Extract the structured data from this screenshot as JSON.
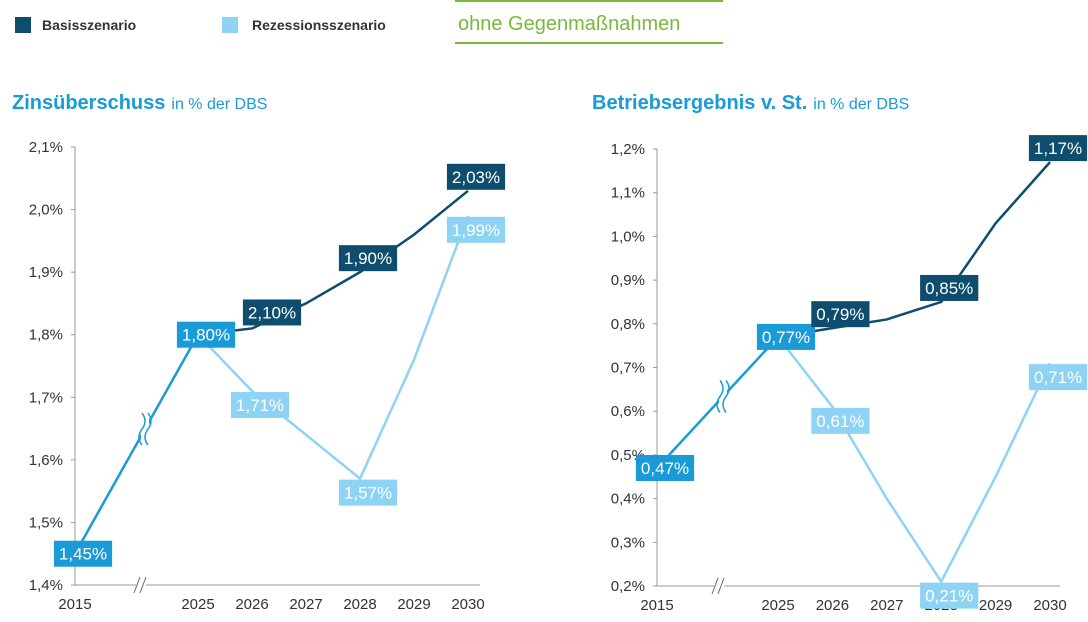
{
  "header": {
    "note": "ohne Gegenmaßnahmen"
  },
  "chart_data": [
    {
      "type": "line",
      "title": "Zinsüberschuss",
      "subtitle": "in % der DBS",
      "categories": [
        "2015",
        "2025",
        "2026",
        "2027",
        "2028",
        "2029",
        "2030"
      ],
      "history_color": "#1a9ad7",
      "series": [
        {
          "name": "Basisszenario",
          "color": "#0e4d6e",
          "values": [
            1.45,
            1.8,
            1.81,
            1.85,
            1.9,
            1.96,
            2.03
          ],
          "value_labels": [
            "1,45%",
            "1,80%",
            null,
            null,
            "1,90%",
            null,
            "2,03%"
          ]
        },
        {
          "name": "Rezessionsszenario",
          "color": "#8ed3f4",
          "values": [
            null,
            1.8,
            1.71,
            1.64,
            1.57,
            1.76,
            1.99
          ],
          "value_labels": [
            null,
            null,
            "1,71%",
            null,
            "1,57%",
            null,
            "1,99%"
          ]
        }
      ],
      "annotations": [
        {
          "text": "2,10%",
          "category": "2026"
        }
      ],
      "ylim": [
        1.4,
        2.1
      ],
      "yticks": [
        {
          "value": 1.4,
          "label": "1,4%"
        },
        {
          "value": 1.5,
          "label": "1,5%"
        },
        {
          "value": 1.6,
          "label": "1,6%"
        },
        {
          "value": 1.7,
          "label": "1,7%"
        },
        {
          "value": 1.8,
          "label": "1,8%"
        },
        {
          "value": 1.9,
          "label": "1,9%"
        },
        {
          "value": 2.0,
          "label": "2,0%"
        },
        {
          "value": 2.1,
          "label": "2,1%"
        }
      ]
    },
    {
      "type": "line",
      "title": "Betriebsergebnis v. St.",
      "subtitle": "in % der DBS",
      "categories": [
        "2015",
        "2025",
        "2026",
        "2027",
        "2028",
        "2029",
        "2030"
      ],
      "history_color": "#1a9ad7",
      "series": [
        {
          "name": "Basisszenario",
          "color": "#0e4d6e",
          "values": [
            0.47,
            0.77,
            0.79,
            0.81,
            0.85,
            1.03,
            1.17
          ],
          "value_labels": [
            "0,47%",
            "0,77%",
            "0,79%",
            null,
            "0,85%",
            null,
            "1,17%"
          ]
        },
        {
          "name": "Rezessionsszenario",
          "color": "#8ed3f4",
          "values": [
            null,
            0.77,
            0.61,
            0.4,
            0.21,
            0.45,
            0.71
          ],
          "value_labels": [
            null,
            null,
            "0,61%",
            null,
            "0,21%",
            null,
            "0,71%"
          ]
        }
      ],
      "annotations": [],
      "ylim": [
        0.2,
        1.2
      ],
      "yticks": [
        {
          "value": 0.2,
          "label": "0,2%"
        },
        {
          "value": 0.3,
          "label": "0,3%"
        },
        {
          "value": 0.4,
          "label": "0,4%"
        },
        {
          "value": 0.5,
          "label": "0,5%"
        },
        {
          "value": 0.6,
          "label": "0,6%"
        },
        {
          "value": 0.7,
          "label": "0,7%"
        },
        {
          "value": 0.8,
          "label": "0,8%"
        },
        {
          "value": 0.9,
          "label": "0,9%"
        },
        {
          "value": 1.0,
          "label": "1,0%"
        },
        {
          "value": 1.1,
          "label": "1,1%"
        },
        {
          "value": 1.2,
          "label": "1,2%"
        }
      ]
    }
  ]
}
